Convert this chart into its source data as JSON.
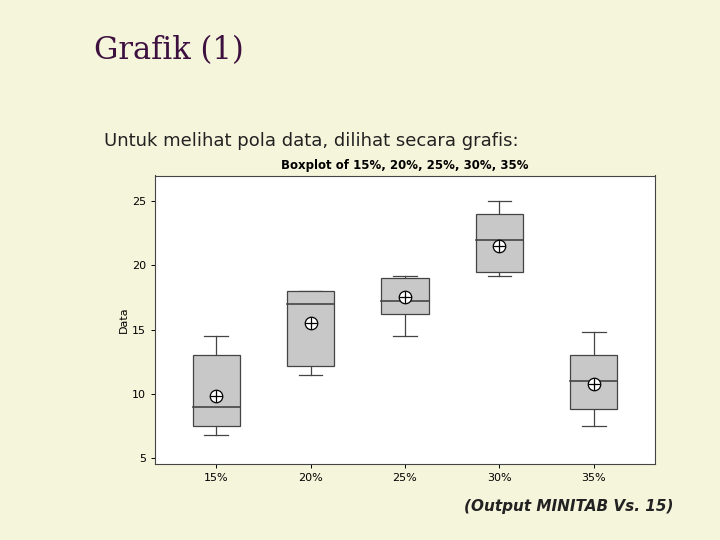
{
  "title": "Grafik (1)",
  "subtitle": "Untuk melihat pola data, dilihat secara grafis:",
  "caption": "(Output MINITAB Vs. 15)",
  "boxplot_title": "Boxplot of 15%, 20%, 25%, 30%, 35%",
  "bg_main": "#f5f5dc",
  "bg_left_bar": "#b8b87a",
  "bg_plot_outer": "#e8e6d0",
  "bg_plot_inner": "#ffffff",
  "box_color": "#c8c8c8",
  "box_edge_color": "#444444",
  "separator_color": "#2d0a1e",
  "title_color": "#3d1040",
  "subtitle_color": "#222222",
  "caption_color": "#222222",
  "bullet_color": "#aaaaaa",
  "categories": [
    "15%",
    "20%",
    "25%",
    "30%",
    "35%"
  ],
  "ylabel": "Data",
  "ylim": [
    4.5,
    27
  ],
  "yticks": [
    5,
    10,
    15,
    20,
    25
  ],
  "data": {
    "15%": {
      "q1": 7.5,
      "median": 9.0,
      "q3": 13.0,
      "mean": 9.8,
      "whisker_low": 6.8,
      "whisker_high": 14.5
    },
    "20%": {
      "q1": 12.2,
      "median": 17.0,
      "q3": 18.0,
      "mean": 15.5,
      "whisker_low": 11.5,
      "whisker_high": 18.0
    },
    "25%": {
      "q1": 16.2,
      "median": 17.2,
      "q3": 19.0,
      "mean": 17.5,
      "whisker_low": 14.5,
      "whisker_high": 19.2
    },
    "30%": {
      "q1": 19.5,
      "median": 22.0,
      "q3": 24.0,
      "mean": 21.5,
      "whisker_low": 19.2,
      "whisker_high": 25.0
    },
    "35%": {
      "q1": 8.8,
      "median": 11.0,
      "q3": 13.0,
      "mean": 10.8,
      "whisker_low": 7.5,
      "whisker_high": 14.8
    }
  },
  "title_fontsize": 22,
  "subtitle_fontsize": 13,
  "caption_fontsize": 11
}
